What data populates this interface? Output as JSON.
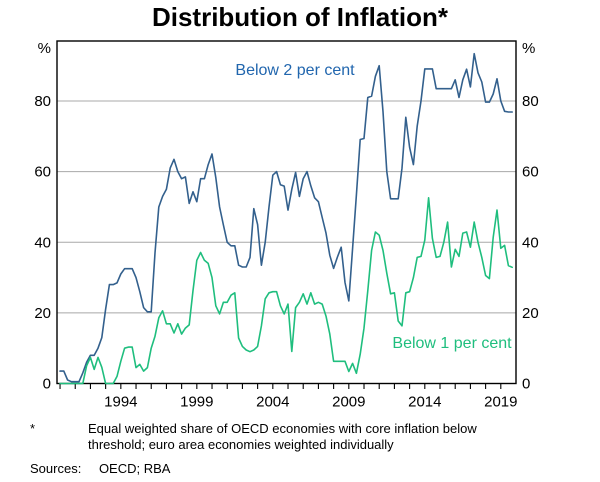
{
  "title": "Distribution of Inflation*",
  "chart_data": {
    "type": "line",
    "frequency": "quarterly",
    "x_start": 1990.0,
    "x_domain": [
      1989.8,
      2020.0
    ],
    "ylim": [
      0,
      97
    ],
    "y_unit": "%",
    "yticks": [
      0,
      20,
      40,
      60,
      80
    ],
    "gridlines": [
      20,
      40,
      60,
      80
    ],
    "xticks_labeled": [
      1994,
      1999,
      2004,
      2009,
      2014,
      2019
    ],
    "xticks_minor_range": [
      1990,
      2019
    ],
    "grid_color": "#a8a8a8",
    "axis_color": "#000000",
    "legend_position": "inline-annotations",
    "series": [
      {
        "name": "Below 2 per cent",
        "color": "#33608d",
        "label_color": "#2166ae",
        "values": [
          3.5,
          3.5,
          1,
          0.5,
          0.5,
          0.5,
          3,
          6,
          8,
          8,
          10,
          13,
          21,
          28,
          28,
          28.5,
          31,
          32.5,
          32.5,
          32.5,
          30,
          26,
          21.5,
          20.3,
          20.3,
          37,
          50,
          53,
          55,
          61,
          63.5,
          60,
          58,
          58.5,
          51,
          54.3,
          51.5,
          58,
          58,
          62,
          65,
          58.3,
          50,
          44.9,
          40,
          39,
          39,
          33.5,
          33,
          33,
          35.7,
          49.5,
          45,
          33.5,
          40,
          50,
          59,
          60,
          56.3,
          55.9,
          49.1,
          55,
          59.8,
          53,
          58,
          60,
          56,
          52.6,
          51.5,
          47,
          42.6,
          36.3,
          32.6,
          35.8,
          38.6,
          28.6,
          23.4,
          38.3,
          53.4,
          69.1,
          69.4,
          81,
          81.4,
          87,
          90,
          77,
          60,
          52.3,
          52.3,
          52.3,
          61,
          75.4,
          66.9,
          62,
          72.9,
          80,
          89.1,
          89.1,
          89.1,
          83.5,
          83.5,
          83.5,
          83.5,
          83.5,
          86,
          81,
          86,
          89,
          84,
          93.4,
          88,
          85.4,
          79.7,
          79.7,
          82,
          86.3,
          80,
          77.1,
          76.9,
          76.9
        ]
      },
      {
        "name": "Below 1 per cent",
        "color": "#1fbe7e",
        "label_color": "#1fbe7e",
        "values": [
          0,
          0,
          0,
          0,
          0,
          0,
          0,
          5,
          7.4,
          4,
          7.4,
          4.6,
          0,
          0,
          0,
          2,
          6.3,
          10,
          10.3,
          10.3,
          4.5,
          5.4,
          3.5,
          4.5,
          10,
          13.4,
          18.6,
          20.6,
          16.9,
          16.9,
          14.3,
          16.9,
          14,
          15.7,
          16.6,
          26.3,
          34.9,
          37.1,
          34.9,
          34,
          30,
          22,
          19.7,
          23,
          23,
          25,
          25.7,
          12.9,
          10.5,
          9.5,
          9,
          9.5,
          10.5,
          16.3,
          24,
          25.7,
          26,
          26,
          22,
          19.7,
          22.5,
          9.1,
          21.5,
          23,
          25.4,
          22.5,
          25.7,
          22.5,
          23,
          22.5,
          19.1,
          14,
          6.3,
          6.3,
          6.3,
          6.3,
          3.4,
          5.7,
          2.9,
          8.3,
          15.7,
          26.3,
          37.7,
          42.9,
          42,
          37.7,
          31.2,
          25.4,
          25.7,
          17.7,
          16.3,
          25.7,
          26,
          30,
          35.7,
          36,
          40.6,
          52.6,
          41.1,
          35.7,
          36,
          40,
          45.7,
          33,
          38,
          36,
          42.6,
          42.9,
          38.6,
          45.7,
          40,
          35.7,
          30.6,
          29.7,
          41.4,
          49.1,
          38.3,
          39.1,
          33.4,
          32.9
        ]
      }
    ]
  },
  "footnote": {
    "symbol": "*",
    "lines": [
      "Equal weighted share of OECD economies with core inflation below",
      "threshold; euro area economies weighted individually"
    ]
  },
  "sources": {
    "label": "Sources:",
    "value": "OECD; RBA"
  }
}
